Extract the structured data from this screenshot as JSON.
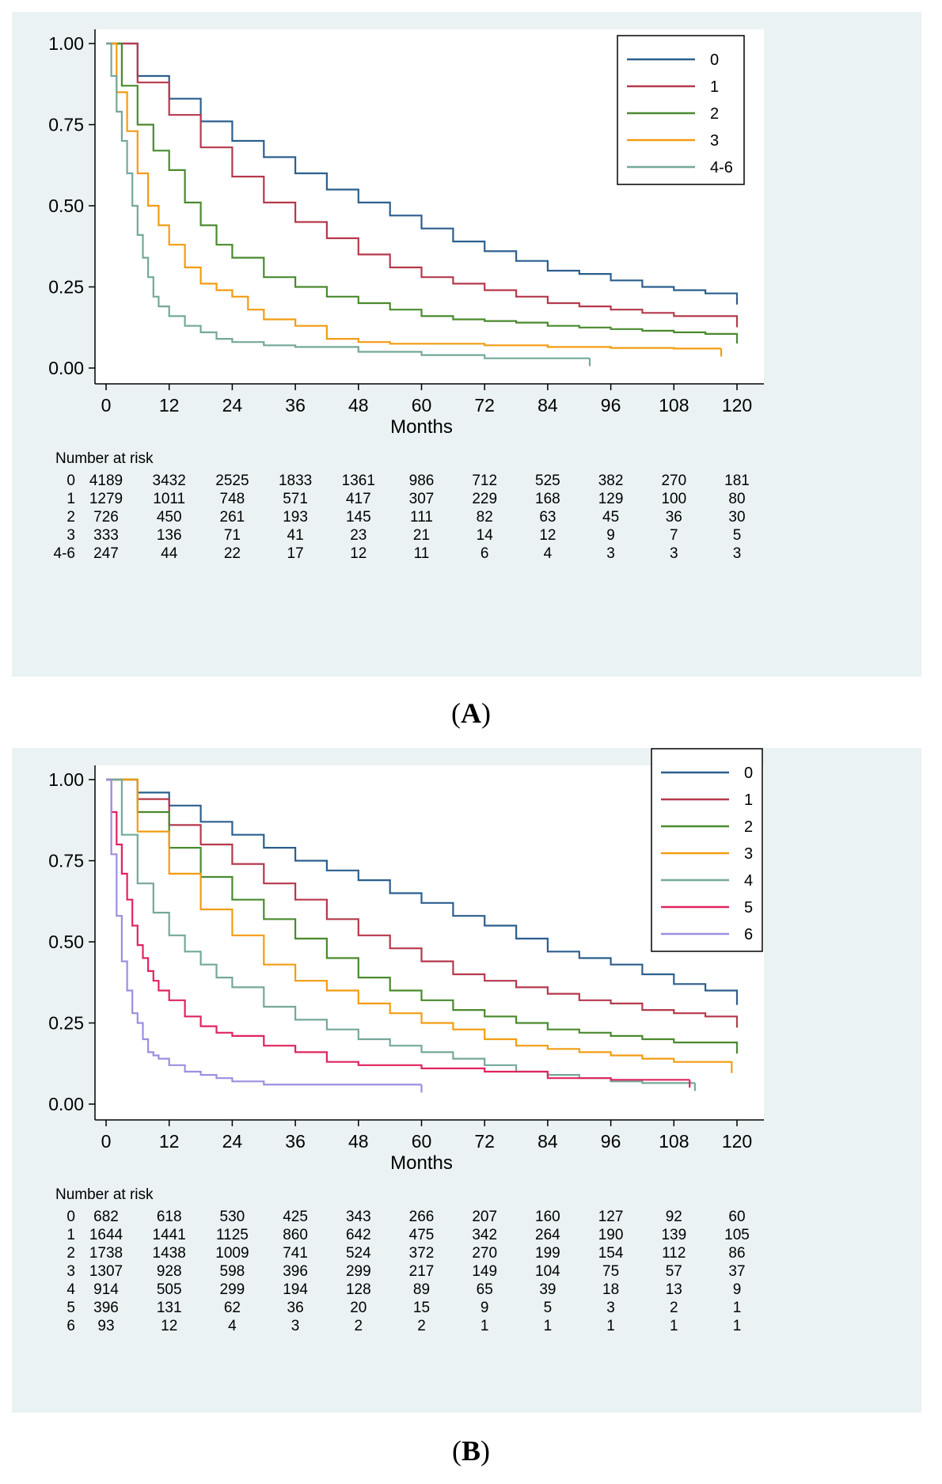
{
  "chart_data": [
    {
      "type": "line",
      "panel_label": "A",
      "xlabel": "Months",
      "ylabel": "",
      "xlim": [
        0,
        120
      ],
      "ylim": [
        0,
        1
      ],
      "xticks": [
        "0",
        "12",
        "24",
        "36",
        "48",
        "60",
        "72",
        "84",
        "96",
        "108",
        "120"
      ],
      "yticks": [
        "0.00",
        "0.25",
        "0.50",
        "0.75",
        "1.00"
      ],
      "legend_position": "top-right",
      "risk_table_title": "Number at risk",
      "series": [
        {
          "name": "0",
          "color": "#2b5f8e",
          "end": 120,
          "x": [
            0,
            6,
            12,
            18,
            24,
            30,
            36,
            42,
            48,
            54,
            60,
            66,
            72,
            78,
            84,
            90,
            96,
            102,
            108,
            114,
            120
          ],
          "y": [
            1.0,
            0.9,
            0.83,
            0.76,
            0.7,
            0.65,
            0.6,
            0.55,
            0.51,
            0.47,
            0.43,
            0.39,
            0.36,
            0.33,
            0.3,
            0.29,
            0.27,
            0.25,
            0.24,
            0.23,
            0.22
          ]
        },
        {
          "name": "1",
          "color": "#b5394c",
          "end": 120,
          "x": [
            0,
            6,
            12,
            18,
            24,
            30,
            36,
            42,
            48,
            54,
            60,
            66,
            72,
            78,
            84,
            90,
            96,
            102,
            108,
            114,
            120
          ],
          "y": [
            1.0,
            0.88,
            0.78,
            0.68,
            0.59,
            0.51,
            0.45,
            0.4,
            0.35,
            0.31,
            0.28,
            0.26,
            0.24,
            0.22,
            0.2,
            0.19,
            0.18,
            0.17,
            0.16,
            0.16,
            0.15
          ]
        },
        {
          "name": "2",
          "color": "#4a8a2e",
          "end": 120,
          "x": [
            0,
            3,
            6,
            9,
            12,
            15,
            18,
            21,
            24,
            30,
            36,
            42,
            48,
            54,
            60,
            66,
            72,
            78,
            84,
            90,
            96,
            102,
            108,
            114,
            120
          ],
          "y": [
            1.0,
            0.87,
            0.75,
            0.67,
            0.61,
            0.51,
            0.44,
            0.38,
            0.34,
            0.28,
            0.25,
            0.22,
            0.2,
            0.18,
            0.16,
            0.15,
            0.145,
            0.14,
            0.13,
            0.125,
            0.12,
            0.115,
            0.11,
            0.105,
            0.1
          ]
        },
        {
          "name": "3",
          "color": "#f39c12",
          "end": 117,
          "x": [
            0,
            2,
            4,
            6,
            8,
            10,
            12,
            15,
            18,
            21,
            24,
            27,
            30,
            36,
            42,
            48,
            54,
            60,
            72,
            84,
            96,
            108,
            117
          ],
          "y": [
            1.0,
            0.85,
            0.73,
            0.6,
            0.5,
            0.44,
            0.38,
            0.31,
            0.26,
            0.24,
            0.22,
            0.18,
            0.15,
            0.13,
            0.09,
            0.08,
            0.075,
            0.075,
            0.07,
            0.065,
            0.062,
            0.06,
            0.06
          ]
        },
        {
          "name": "4-6",
          "color": "#74a89a",
          "end": 92,
          "x": [
            0,
            1,
            2,
            3,
            4,
            5,
            6,
            7,
            8,
            9,
            10,
            12,
            15,
            18,
            21,
            24,
            30,
            36,
            48,
            60,
            72,
            84,
            92
          ],
          "y": [
            1.0,
            0.9,
            0.79,
            0.7,
            0.6,
            0.5,
            0.41,
            0.34,
            0.28,
            0.22,
            0.19,
            0.16,
            0.13,
            0.11,
            0.09,
            0.08,
            0.07,
            0.065,
            0.05,
            0.04,
            0.03,
            0.03,
            0.03
          ]
        }
      ],
      "risk_table": {
        "row_labels": [
          "0",
          "1",
          "2",
          "3",
          "4-6"
        ],
        "rows": [
          [
            "4189",
            "3432",
            "2525",
            "1833",
            "1361",
            "986",
            "712",
            "525",
            "382",
            "270",
            "181"
          ],
          [
            "1279",
            "1011",
            "748",
            "571",
            "417",
            "307",
            "229",
            "168",
            "129",
            "100",
            "80"
          ],
          [
            "726",
            "450",
            "261",
            "193",
            "145",
            "111",
            "82",
            "63",
            "45",
            "36",
            "30"
          ],
          [
            "333",
            "136",
            "71",
            "41",
            "23",
            "21",
            "14",
            "12",
            "9",
            "7",
            "5"
          ],
          [
            "247",
            "44",
            "22",
            "17",
            "12",
            "11",
            "6",
            "4",
            "3",
            "3",
            "3"
          ]
        ]
      }
    },
    {
      "type": "line",
      "panel_label": "B",
      "xlabel": "Months",
      "ylabel": "",
      "xlim": [
        0,
        120
      ],
      "ylim": [
        0,
        1
      ],
      "xticks": [
        "0",
        "12",
        "24",
        "36",
        "48",
        "60",
        "72",
        "84",
        "96",
        "108",
        "120"
      ],
      "yticks": [
        "0.00",
        "0.25",
        "0.50",
        "0.75",
        "1.00"
      ],
      "legend_position": "top-right",
      "risk_table_title": "Number at risk",
      "series": [
        {
          "name": "0",
          "color": "#2b5f8e",
          "end": 120,
          "x": [
            0,
            6,
            12,
            18,
            24,
            30,
            36,
            42,
            48,
            54,
            60,
            66,
            72,
            78,
            84,
            90,
            96,
            102,
            108,
            114,
            120
          ],
          "y": [
            1.0,
            0.96,
            0.92,
            0.87,
            0.83,
            0.79,
            0.75,
            0.72,
            0.69,
            0.65,
            0.62,
            0.58,
            0.55,
            0.51,
            0.47,
            0.45,
            0.43,
            0.4,
            0.37,
            0.35,
            0.33
          ]
        },
        {
          "name": "1",
          "color": "#b5394c",
          "end": 120,
          "x": [
            0,
            6,
            12,
            18,
            24,
            30,
            36,
            42,
            48,
            54,
            60,
            66,
            72,
            78,
            84,
            90,
            96,
            102,
            108,
            114,
            120
          ],
          "y": [
            1.0,
            0.94,
            0.86,
            0.8,
            0.74,
            0.68,
            0.63,
            0.57,
            0.52,
            0.48,
            0.44,
            0.4,
            0.38,
            0.36,
            0.34,
            0.32,
            0.31,
            0.29,
            0.28,
            0.27,
            0.26
          ]
        },
        {
          "name": "2",
          "color": "#4a8a2e",
          "end": 120,
          "x": [
            0,
            6,
            12,
            18,
            24,
            30,
            36,
            42,
            48,
            54,
            60,
            66,
            72,
            78,
            84,
            90,
            96,
            102,
            108,
            114,
            120
          ],
          "y": [
            1.0,
            0.9,
            0.79,
            0.7,
            0.63,
            0.57,
            0.51,
            0.45,
            0.39,
            0.35,
            0.32,
            0.29,
            0.27,
            0.25,
            0.23,
            0.22,
            0.21,
            0.2,
            0.19,
            0.19,
            0.18
          ]
        },
        {
          "name": "3",
          "color": "#f39c12",
          "end": 119,
          "x": [
            0,
            6,
            12,
            18,
            24,
            30,
            36,
            42,
            48,
            54,
            60,
            66,
            72,
            78,
            84,
            90,
            96,
            102,
            108,
            114,
            119
          ],
          "y": [
            1.0,
            0.84,
            0.71,
            0.6,
            0.52,
            0.43,
            0.38,
            0.35,
            0.31,
            0.28,
            0.25,
            0.23,
            0.2,
            0.18,
            0.17,
            0.16,
            0.15,
            0.14,
            0.13,
            0.13,
            0.12
          ]
        },
        {
          "name": "4",
          "color": "#74a89a",
          "end": 112,
          "x": [
            0,
            3,
            6,
            9,
            12,
            15,
            18,
            21,
            24,
            30,
            36,
            42,
            48,
            54,
            60,
            66,
            72,
            78,
            84,
            90,
            96,
            102,
            108,
            112
          ],
          "y": [
            1.0,
            0.83,
            0.68,
            0.59,
            0.52,
            0.47,
            0.43,
            0.39,
            0.36,
            0.3,
            0.26,
            0.23,
            0.2,
            0.18,
            0.16,
            0.14,
            0.12,
            0.1,
            0.09,
            0.08,
            0.07,
            0.065,
            0.065,
            0.065
          ]
        },
        {
          "name": "5",
          "color": "#e0245e",
          "end": 111,
          "x": [
            0,
            1,
            2,
            3,
            4,
            5,
            6,
            7,
            8,
            9,
            10,
            12,
            15,
            18,
            21,
            24,
            30,
            36,
            42,
            48,
            60,
            72,
            84,
            96,
            108,
            111
          ],
          "y": [
            1.0,
            0.9,
            0.8,
            0.71,
            0.63,
            0.55,
            0.49,
            0.45,
            0.41,
            0.38,
            0.35,
            0.32,
            0.27,
            0.24,
            0.22,
            0.21,
            0.18,
            0.16,
            0.13,
            0.12,
            0.11,
            0.1,
            0.08,
            0.075,
            0.075,
            0.075
          ]
        },
        {
          "name": "6",
          "color": "#9b8fe0",
          "end": 60,
          "x": [
            0,
            1,
            2,
            3,
            4,
            5,
            6,
            7,
            8,
            9,
            10,
            12,
            15,
            18,
            21,
            24,
            30,
            36,
            48,
            60
          ],
          "y": [
            1.0,
            0.77,
            0.58,
            0.44,
            0.35,
            0.28,
            0.25,
            0.2,
            0.16,
            0.15,
            0.14,
            0.12,
            0.1,
            0.09,
            0.08,
            0.07,
            0.06,
            0.06,
            0.06,
            0.06
          ]
        }
      ],
      "risk_table": {
        "row_labels": [
          "0",
          "1",
          "2",
          "3",
          "4",
          "5",
          "6"
        ],
        "rows": [
          [
            "682",
            "618",
            "530",
            "425",
            "343",
            "266",
            "207",
            "160",
            "127",
            "92",
            "60"
          ],
          [
            "1644",
            "1441",
            "1125",
            "860",
            "642",
            "475",
            "342",
            "264",
            "190",
            "139",
            "105"
          ],
          [
            "1738",
            "1438",
            "1009",
            "741",
            "524",
            "372",
            "270",
            "199",
            "154",
            "112",
            "86"
          ],
          [
            "1307",
            "928",
            "598",
            "396",
            "299",
            "217",
            "149",
            "104",
            "75",
            "57",
            "37"
          ],
          [
            "914",
            "505",
            "299",
            "194",
            "128",
            "89",
            "65",
            "39",
            "18",
            "13",
            "9"
          ],
          [
            "396",
            "131",
            "62",
            "36",
            "20",
            "15",
            "9",
            "5",
            "3",
            "2",
            "1"
          ],
          [
            "93",
            "12",
            "4",
            "3",
            "2",
            "2",
            "1",
            "1",
            "1",
            "1",
            "1"
          ]
        ]
      }
    }
  ]
}
